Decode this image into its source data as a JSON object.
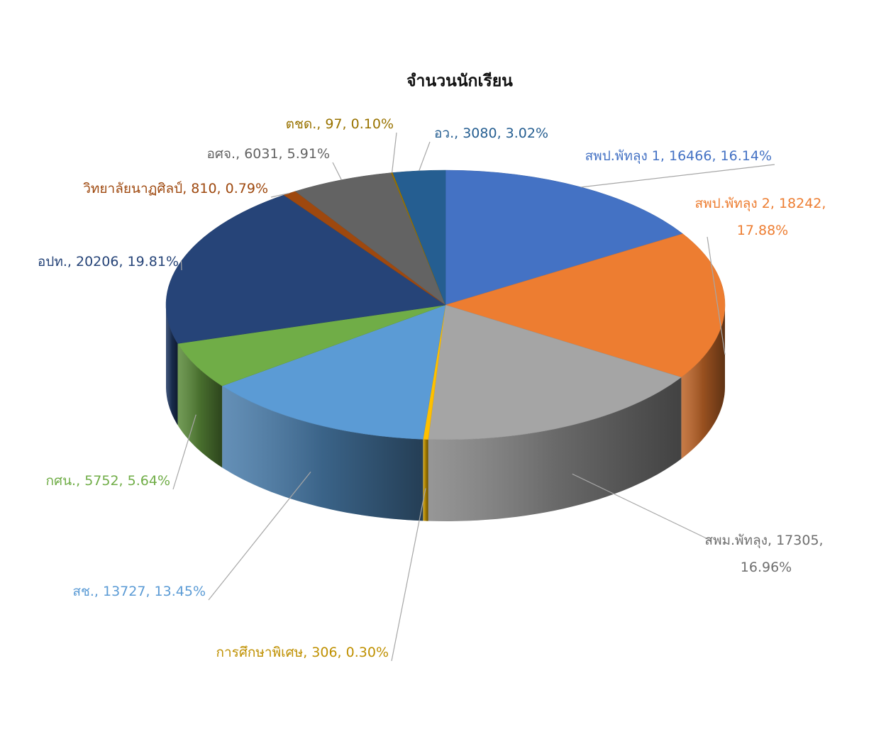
{
  "chart_data": {
    "type": "pie3d",
    "title": "จำนวนนักเรียน",
    "categories": [
      "สพป.พัทลุง 1",
      "สพป.พัทลุง 2",
      "สพม.พัทลุง",
      "การศึกษาพิเศษ",
      "สช.",
      "กศน.",
      "อปท.",
      "วิทยาลัยนาฏศิลป์",
      "อศจ.",
      "ตชด.",
      "อว."
    ],
    "values": [
      16466,
      18242,
      17305,
      306,
      13727,
      5752,
      20206,
      810,
      6031,
      97,
      3080
    ],
    "percent_labels": [
      "16.14%",
      "17.88%",
      "16.96%",
      "0.30%",
      "13.45%",
      "5.64%",
      "19.81%",
      "0.79%",
      "5.91%",
      "0.10%",
      "3.02%"
    ],
    "label_separator": ", ",
    "colors": [
      "#4472c4",
      "#ed7d31",
      "#a5a5a5",
      "#ffc000",
      "#5b9bd5",
      "#70ad47",
      "#264478",
      "#9e480e",
      "#636363",
      "#997300",
      "#255e91"
    ]
  }
}
